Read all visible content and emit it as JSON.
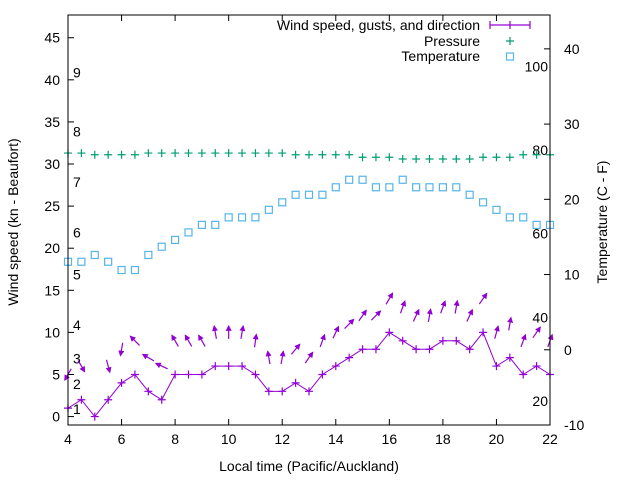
{
  "chart_data": {
    "type": "line",
    "xlabel": "Local time (Pacific/Auckland)",
    "ylabel": "Wind speed (kn - Beaufort)",
    "y2label": "Temperature (C - F)",
    "xlim": [
      4,
      22
    ],
    "ylim": [
      -1,
      47.7
    ],
    "y2lim": [
      -10,
      44.5
    ],
    "xticks": [
      4,
      6,
      8,
      10,
      12,
      14,
      16,
      18,
      20,
      22
    ],
    "yticks": [
      0,
      5,
      10,
      15,
      20,
      25,
      30,
      35,
      40,
      45
    ],
    "y2ticks": [
      -10,
      0,
      10,
      20,
      30,
      40
    ],
    "beaufort_labels": [
      {
        "label": "1",
        "kn": 1
      },
      {
        "label": "2",
        "kn": 4
      },
      {
        "label": "3",
        "kn": 7
      },
      {
        "label": "4",
        "kn": 11
      },
      {
        "label": "5",
        "kn": 17
      },
      {
        "label": "6",
        "kn": 22
      },
      {
        "label": "7",
        "kn": 28
      },
      {
        "label": "8",
        "kn": 34
      },
      {
        "label": "9",
        "kn": 41
      }
    ],
    "fahrenheit_labels": [
      {
        "label": "20",
        "c": -6.7
      },
      {
        "label": "40",
        "c": 4.4
      },
      {
        "label": "60",
        "c": 15.6
      },
      {
        "label": "80",
        "c": 26.7
      },
      {
        "label": "100",
        "c": 37.8
      }
    ],
    "legend_position": "top-right",
    "grid": false,
    "x": [
      4,
      4.5,
      5,
      5.5,
      6,
      6.5,
      7,
      7.5,
      8,
      8.5,
      9,
      9.5,
      10,
      10.5,
      11,
      11.5,
      12,
      12.5,
      13,
      13.5,
      14,
      14.5,
      15,
      15.5,
      16,
      16.5,
      17,
      17.5,
      18,
      18.5,
      19,
      19.5,
      20,
      20.5,
      21,
      21.5,
      22
    ],
    "series": [
      {
        "name": "Wind speed, gusts, and direction",
        "color": "#9400d3",
        "axis": "y",
        "values": [
          1,
          2,
          0,
          2,
          4,
          5,
          3,
          2,
          5,
          5,
          5,
          6,
          6,
          6,
          5,
          3,
          3,
          4,
          3,
          5,
          6,
          7,
          8,
          8,
          10,
          9,
          8,
          8,
          9,
          9,
          8,
          10,
          6,
          7,
          5,
          6,
          5
        ],
        "gusts": [
          5,
          6,
          null,
          6,
          8,
          9,
          7,
          6,
          9,
          9,
          9,
          10,
          10,
          10,
          9,
          7,
          7,
          8,
          7,
          9,
          10,
          11,
          12,
          12,
          14,
          13,
          12,
          12,
          13,
          13,
          12,
          14,
          10,
          11,
          9,
          10,
          9
        ],
        "arrow_direction_deg": [
          210,
          150,
          null,
          165,
          190,
          315,
          300,
          295,
          330,
          330,
          330,
          350,
          0,
          10,
          8,
          350,
          10,
          40,
          35,
          20,
          25,
          45,
          35,
          45,
          30,
          20,
          25,
          10,
          20,
          10,
          25,
          35,
          15,
          10,
          20,
          35,
          20
        ]
      },
      {
        "name": "Pressure",
        "color": "#009e73",
        "axis": "y",
        "values": [
          31.3,
          31.3,
          31.1,
          31.1,
          31.1,
          31.1,
          31.3,
          31.3,
          31.3,
          31.3,
          31.3,
          31.3,
          31.3,
          31.3,
          31.3,
          31.3,
          31.3,
          31.1,
          31.1,
          31.1,
          31.1,
          31.1,
          30.8,
          30.8,
          30.8,
          30.6,
          30.6,
          30.6,
          30.6,
          30.6,
          30.6,
          30.8,
          30.8,
          30.8,
          31.1,
          31.1,
          31.1
        ]
      },
      {
        "name": "Temperature",
        "color": "#56b4e9",
        "axis": "y2",
        "values": [
          11.7,
          11.7,
          12.6,
          11.7,
          10.6,
          10.6,
          12.6,
          13.7,
          14.6,
          15.6,
          16.6,
          16.6,
          17.6,
          17.6,
          17.6,
          18.6,
          19.6,
          20.6,
          20.6,
          20.6,
          21.6,
          22.6,
          22.6,
          21.6,
          21.6,
          22.6,
          21.6,
          21.6,
          21.6,
          21.6,
          20.6,
          19.6,
          18.6,
          17.6,
          17.6,
          16.6,
          16.6
        ]
      }
    ]
  }
}
